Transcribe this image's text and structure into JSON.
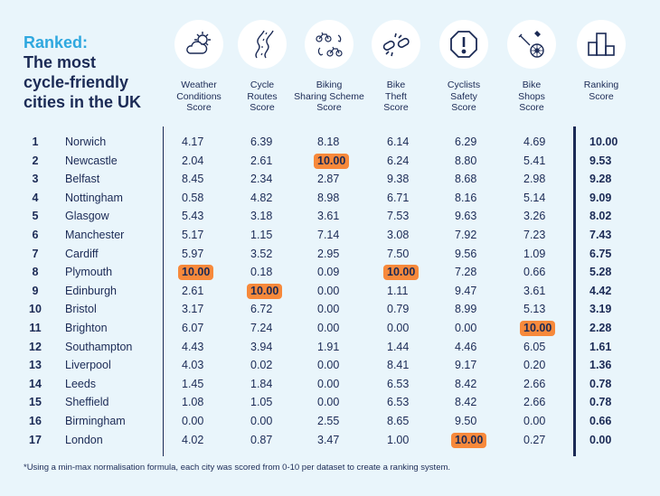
{
  "chart_data": {
    "type": "table",
    "title_accent": "Ranked:",
    "title": "The most\ncycle-friendly\ncities in the UK",
    "columns": [
      {
        "label": "Weather\nConditions\nScore",
        "icon": "weather-icon"
      },
      {
        "label": "Cycle\nRoutes\nScore",
        "icon": "road-icon"
      },
      {
        "label": "Biking\nSharing Scheme\nScore",
        "icon": "bike-sharing-icon"
      },
      {
        "label": "Bike\nTheft\nScore",
        "icon": "broken-chain-icon"
      },
      {
        "label": "Cyclists\nSafety\nScore",
        "icon": "warning-icon"
      },
      {
        "label": "Bike\nShops\nScore",
        "icon": "bike-tools-icon"
      },
      {
        "label": "Ranking\nScore",
        "icon": "podium-icon"
      }
    ],
    "rows": [
      {
        "rank": "1",
        "city": "Norwich",
        "scores": [
          "4.17",
          "6.39",
          "8.18",
          "6.14",
          "6.29",
          "4.69"
        ],
        "ranking": "10.00"
      },
      {
        "rank": "2",
        "city": "Newcastle",
        "scores": [
          "2.04",
          "2.61",
          "10.00",
          "6.24",
          "8.80",
          "5.41"
        ],
        "ranking": "9.53"
      },
      {
        "rank": "3",
        "city": "Belfast",
        "scores": [
          "8.45",
          "2.34",
          "2.87",
          "9.38",
          "8.68",
          "2.98"
        ],
        "ranking": "9.28"
      },
      {
        "rank": "4",
        "city": "Nottingham",
        "scores": [
          "0.58",
          "4.82",
          "8.98",
          "6.71",
          "8.16",
          "5.14"
        ],
        "ranking": "9.09"
      },
      {
        "rank": "5",
        "city": "Glasgow",
        "scores": [
          "5.43",
          "3.18",
          "3.61",
          "7.53",
          "9.63",
          "3.26"
        ],
        "ranking": "8.02"
      },
      {
        "rank": "6",
        "city": "Manchester",
        "scores": [
          "5.17",
          "1.15",
          "7.14",
          "3.08",
          "7.92",
          "7.23"
        ],
        "ranking": "7.43"
      },
      {
        "rank": "7",
        "city": "Cardiff",
        "scores": [
          "5.97",
          "3.52",
          "2.95",
          "7.50",
          "9.56",
          "1.09"
        ],
        "ranking": "6.75"
      },
      {
        "rank": "8",
        "city": "Plymouth",
        "scores": [
          "10.00",
          "0.18",
          "0.09",
          "10.00",
          "7.28",
          "0.66"
        ],
        "ranking": "5.28"
      },
      {
        "rank": "9",
        "city": "Edinburgh",
        "scores": [
          "2.61",
          "10.00",
          "0.00",
          "1.11",
          "9.47",
          "3.61"
        ],
        "ranking": "4.42"
      },
      {
        "rank": "10",
        "city": "Bristol",
        "scores": [
          "3.17",
          "6.72",
          "0.00",
          "0.79",
          "8.99",
          "5.13"
        ],
        "ranking": "3.19"
      },
      {
        "rank": "11",
        "city": "Brighton",
        "scores": [
          "6.07",
          "7.24",
          "0.00",
          "0.00",
          "0.00",
          "10.00"
        ],
        "ranking": "2.28"
      },
      {
        "rank": "12",
        "city": "Southampton",
        "scores": [
          "4.43",
          "3.94",
          "1.91",
          "1.44",
          "4.46",
          "6.05"
        ],
        "ranking": "1.61"
      },
      {
        "rank": "13",
        "city": "Liverpool",
        "scores": [
          "4.03",
          "0.02",
          "0.00",
          "8.41",
          "9.17",
          "0.20"
        ],
        "ranking": "1.36"
      },
      {
        "rank": "14",
        "city": "Leeds",
        "scores": [
          "1.45",
          "1.84",
          "0.00",
          "6.53",
          "8.42",
          "2.66"
        ],
        "ranking": "0.78"
      },
      {
        "rank": "15",
        "city": "Sheffield",
        "scores": [
          "1.08",
          "1.05",
          "0.00",
          "6.53",
          "8.42",
          "2.66"
        ],
        "ranking": "0.78"
      },
      {
        "rank": "16",
        "city": "Birmingham",
        "scores": [
          "0.00",
          "0.00",
          "2.55",
          "8.65",
          "9.50",
          "0.00"
        ],
        "ranking": "0.66"
      },
      {
        "rank": "17",
        "city": "London",
        "scores": [
          "4.02",
          "0.87",
          "3.47",
          "1.00",
          "10.00",
          "0.27"
        ],
        "ranking": "0.00"
      }
    ],
    "highlight_value": "10.00",
    "highlight_color": "#f7893b",
    "footnote": "*Using a min-max normalisation formula, each city was scored from 0-10 per dataset to create a ranking system."
  },
  "colors": {
    "background": "#e9f5fb",
    "navy": "#1b2a55",
    "accent": "#2fa8df",
    "highlight": "#f7893b"
  }
}
